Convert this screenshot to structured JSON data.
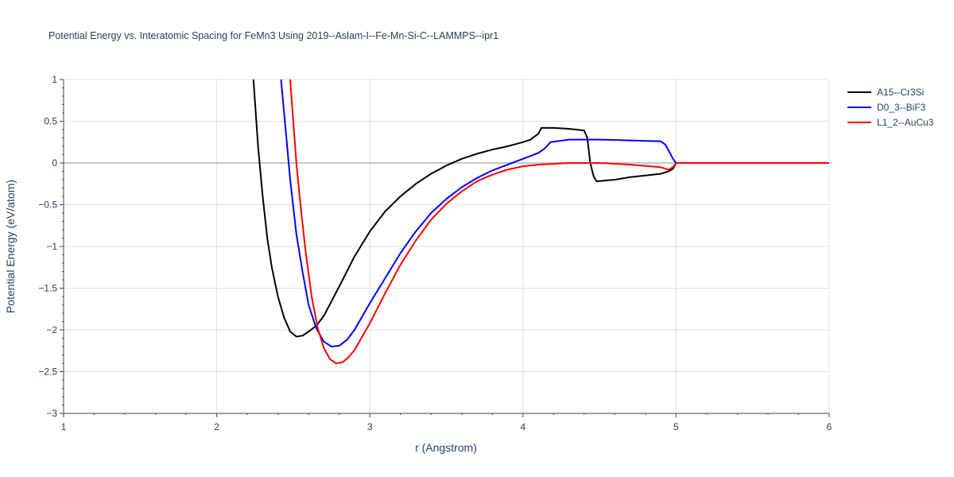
{
  "chart_data": {
    "type": "line",
    "title": "Potential Energy vs. Interatomic Spacing for FeMn3 Using 2019--Aslam-I--Fe-Mn-Si-C--LAMMPS--ipr1",
    "xlabel": "r (Angstrom)",
    "ylabel": "Potential Energy (eV/atom)",
    "xlim": [
      1,
      6
    ],
    "ylim": [
      -3,
      1
    ],
    "xticks": [
      1,
      2,
      3,
      4,
      5,
      6
    ],
    "xtick_labels": [
      "1",
      "2",
      "3",
      "4",
      "5",
      "6"
    ],
    "yticks": [
      1,
      0.5,
      0,
      -0.5,
      -1,
      -1.5,
      -2,
      -2.5,
      -3
    ],
    "ytick_labels": [
      "1",
      "0.5",
      "0",
      "−0.5",
      "−1",
      "−1.5",
      "−2",
      "−2.5",
      "−3"
    ],
    "grid": true,
    "legend_position": "top-right",
    "series": [
      {
        "name": "A15--Cr3Si",
        "color": "#000000",
        "x": [
          2.24,
          2.27,
          2.3,
          2.33,
          2.36,
          2.4,
          2.44,
          2.48,
          2.52,
          2.56,
          2.6,
          2.65,
          2.7,
          2.8,
          2.9,
          3.0,
          3.1,
          3.2,
          3.3,
          3.4,
          3.5,
          3.6,
          3.7,
          3.8,
          3.9,
          4.0,
          4.05,
          4.1,
          4.12,
          4.2,
          4.3,
          4.4,
          4.42,
          4.44,
          4.46,
          4.48,
          4.6,
          4.7,
          4.8,
          4.9,
          4.95,
          4.98,
          5.0,
          5.5,
          6.0
        ],
        "y": [
          1.0,
          0.2,
          -0.4,
          -0.9,
          -1.25,
          -1.6,
          -1.85,
          -2.02,
          -2.08,
          -2.07,
          -2.02,
          -1.95,
          -1.83,
          -1.48,
          -1.12,
          -0.82,
          -0.58,
          -0.4,
          -0.25,
          -0.13,
          -0.03,
          0.05,
          0.11,
          0.16,
          0.2,
          0.25,
          0.28,
          0.35,
          0.42,
          0.42,
          0.41,
          0.39,
          0.3,
          0.0,
          -0.15,
          -0.22,
          -0.2,
          -0.17,
          -0.15,
          -0.13,
          -0.1,
          -0.07,
          0.0,
          0.0,
          0.0
        ]
      },
      {
        "name": "D0_3--BiF3",
        "color": "#0000ff",
        "x": [
          2.42,
          2.45,
          2.48,
          2.52,
          2.56,
          2.6,
          2.65,
          2.7,
          2.75,
          2.8,
          2.85,
          2.9,
          3.0,
          3.1,
          3.2,
          3.3,
          3.4,
          3.5,
          3.6,
          3.7,
          3.8,
          3.9,
          4.0,
          4.1,
          4.14,
          4.18,
          4.3,
          4.5,
          4.7,
          4.9,
          4.93,
          4.96,
          4.98,
          5.0,
          5.5,
          6.0
        ],
        "y": [
          1.0,
          0.4,
          -0.2,
          -0.85,
          -1.3,
          -1.7,
          -1.98,
          -2.14,
          -2.2,
          -2.19,
          -2.12,
          -2.0,
          -1.68,
          -1.38,
          -1.08,
          -0.82,
          -0.6,
          -0.43,
          -0.29,
          -0.18,
          -0.09,
          -0.02,
          0.05,
          0.12,
          0.17,
          0.25,
          0.28,
          0.28,
          0.27,
          0.26,
          0.22,
          0.12,
          0.05,
          0.0,
          0.0,
          0.0
        ]
      },
      {
        "name": "L1_2--AuCu3",
        "color": "#ff0000",
        "x": [
          2.48,
          2.5,
          2.52,
          2.55,
          2.58,
          2.62,
          2.66,
          2.7,
          2.74,
          2.78,
          2.82,
          2.86,
          2.9,
          3.0,
          3.1,
          3.2,
          3.3,
          3.4,
          3.5,
          3.6,
          3.7,
          3.8,
          3.9,
          4.0,
          4.1,
          4.2,
          4.3,
          4.5,
          4.7,
          4.9,
          4.95,
          4.98,
          5.0,
          5.5,
          6.0
        ],
        "y": [
          1.0,
          0.5,
          0.0,
          -0.55,
          -1.05,
          -1.6,
          -1.98,
          -2.22,
          -2.35,
          -2.4,
          -2.39,
          -2.33,
          -2.24,
          -1.92,
          -1.56,
          -1.22,
          -0.93,
          -0.68,
          -0.49,
          -0.34,
          -0.22,
          -0.14,
          -0.08,
          -0.04,
          -0.02,
          -0.01,
          0.0,
          0.0,
          -0.02,
          -0.05,
          -0.08,
          -0.05,
          0.0,
          0.0,
          0.0
        ]
      }
    ]
  }
}
